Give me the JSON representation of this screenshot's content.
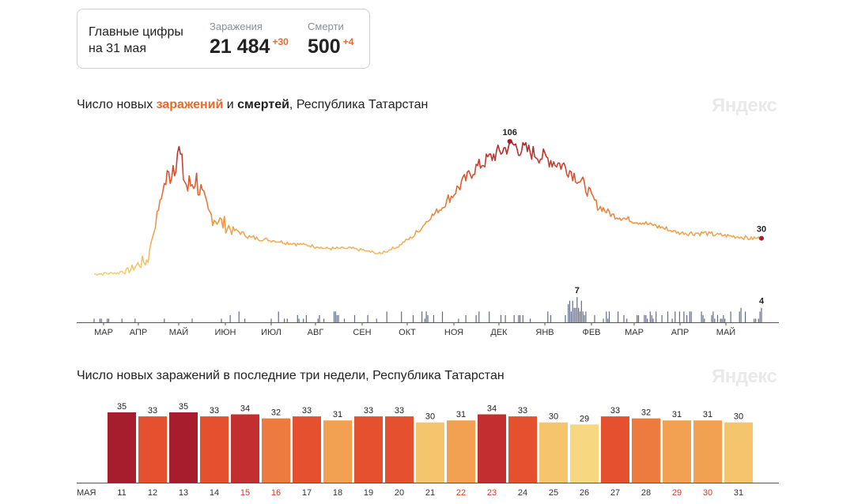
{
  "summary": {
    "title_line1": "Главные цифры",
    "title_line2": "на 31 мая",
    "infections": {
      "label": "Заражения",
      "value": "21 484",
      "delta": "+30"
    },
    "deaths": {
      "label": "Смерти",
      "value": "500",
      "delta": "+4"
    }
  },
  "logo": "Яндекс",
  "chart1": {
    "title_pre": "Число новых ",
    "title_hl1": "заражений",
    "title_mid": " и ",
    "title_hl2": "смертей",
    "title_post": ", Республика Татарстан"
  },
  "chart2": {
    "title": "Число новых заражений в последние три недели, Республика Татарстан"
  },
  "colors": {
    "low": "#f5d07a",
    "mid": "#f0a04b",
    "high": "#e8542f",
    "peak": "#a61e2e",
    "deaths": "#626b86",
    "axis": "#555555",
    "weekend": "#d83a2a"
  },
  "chart_data": [
    {
      "type": "line",
      "series": [
        {
          "values": []
        },
        {
          "values": []
        }
      ],
      "annotations": [
        {
          "x": "peak",
          "y": 106,
          "label": "106"
        },
        {
          "x": "last",
          "y": 30,
          "label": "30"
        },
        {
          "x": "deaths-peak",
          "y": 7,
          "label": "7"
        },
        {
          "x": "deaths-last",
          "y": 4,
          "label": "4"
        }
      ],
      "xticks": [
        "МАР",
        "АПР",
        "МАЙ",
        "ИЮН",
        "ИЮЛ",
        "АВГ",
        "СЕН",
        "ОКТ",
        "НОЯ",
        "ДЕК",
        "ЯНВ",
        "ФЕВ",
        "МАР",
        "АПР",
        "МАЙ"
      ],
      "peak_infections": 106,
      "last_infections": 30,
      "peak_deaths": 7,
      "last_deaths": 4
    },
    {
      "type": "bar",
      "month_label": "МАЯ",
      "categories": [
        "11",
        "12",
        "13",
        "14",
        "15",
        "16",
        "17",
        "18",
        "19",
        "20",
        "21",
        "22",
        "23",
        "24",
        "25",
        "26",
        "27",
        "28",
        "29",
        "30",
        "31"
      ],
      "values": [
        35,
        33,
        35,
        33,
        34,
        32,
        33,
        31,
        33,
        33,
        30,
        31,
        34,
        33,
        30,
        29,
        33,
        32,
        31,
        31,
        30
      ],
      "weekend_categories": [
        "15",
        "16",
        "22",
        "23",
        "29",
        "30"
      ],
      "ylim": [
        0,
        35
      ]
    }
  ]
}
